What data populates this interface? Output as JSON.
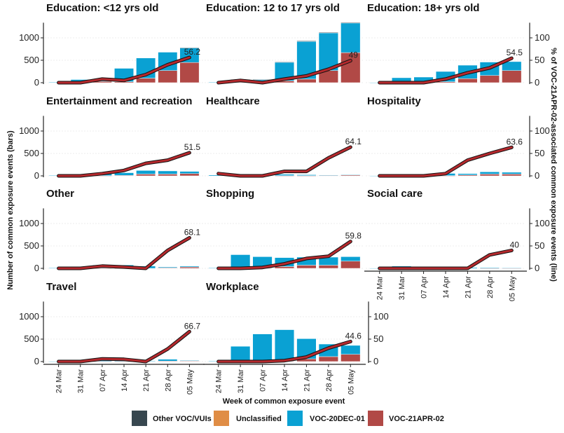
{
  "chart_data": {
    "type": "bar",
    "subtype": "faceted stacked bar with secondary-axis line",
    "xlabel": "Week of common exposure event",
    "ylabel_left": "Number of common exposure events (bars)",
    "ylabel_right": "% of VOC-21APR-02-associated common exposure events (line)",
    "categories": [
      "24 Mar",
      "31 Mar",
      "07 Apr",
      "14 Apr",
      "21 Apr",
      "28 Apr",
      "05 May"
    ],
    "ylim_left": [
      0,
      1400
    ],
    "yticks_left": [
      0,
      500,
      1000
    ],
    "ylim_right": [
      0,
      140
    ],
    "yticks_right": [
      0,
      50,
      100
    ],
    "grid": "horizontal dotted",
    "legend_position": "bottom",
    "legend": [
      {
        "name": "Other VOC/VUIs",
        "color": "#37474f"
      },
      {
        "name": "Unclassified",
        "color": "#e08d45"
      },
      {
        "name": "VOC-20DEC-01",
        "color": "#0aa1d3"
      },
      {
        "name": "VOC-21APR-02",
        "color": "#b14946"
      }
    ],
    "line_color": "#b5292d",
    "panels": [
      {
        "title": "Education: <12 yrs old",
        "series": [
          {
            "name": "Other VOC/VUIs",
            "values": [
              0,
              0,
              0,
              0,
              0,
              0,
              5
            ]
          },
          {
            "name": "Unclassified",
            "values": [
              0,
              0,
              0,
              0,
              0,
              0,
              0
            ]
          },
          {
            "name": "VOC-20DEC-01",
            "values": [
              10,
              60,
              60,
              300,
              450,
              410,
              330
            ]
          },
          {
            "name": "VOC-21APR-02",
            "values": [
              0,
              10,
              30,
              20,
              100,
              270,
              450
            ]
          }
        ],
        "line_pct": [
          0,
          0,
          8,
          5,
          18,
          40,
          56.2
        ],
        "end_label": "56.2"
      },
      {
        "title": "Education: 12 to 17 yrs old",
        "series": [
          {
            "name": "Other VOC/VUIs",
            "values": [
              0,
              5,
              5,
              5,
              15,
              15,
              15
            ]
          },
          {
            "name": "Unclassified",
            "values": [
              0,
              0,
              0,
              0,
              0,
              0,
              0
            ]
          },
          {
            "name": "VOC-20DEC-01",
            "values": [
              10,
              60,
              60,
              420,
              840,
              840,
              660
            ]
          },
          {
            "name": "VOC-21APR-02",
            "values": [
              0,
              10,
              10,
              40,
              80,
              270,
              670
            ]
          }
        ],
        "line_pct": [
          0,
          5,
          0,
          8,
          15,
          30,
          49
        ],
        "end_label": "49"
      },
      {
        "title": "Education: 18+ yrs old",
        "series": [
          {
            "name": "Other VOC/VUIs",
            "values": [
              0,
              0,
              0,
              0,
              0,
              0,
              0
            ]
          },
          {
            "name": "Unclassified",
            "values": [
              0,
              0,
              0,
              0,
              0,
              0,
              0
            ]
          },
          {
            "name": "VOC-20DEC-01",
            "values": [
              5,
              110,
              120,
              230,
              300,
              300,
              200
            ]
          },
          {
            "name": "VOC-21APR-02",
            "values": [
              0,
              0,
              5,
              20,
              90,
              160,
              270
            ]
          }
        ],
        "line_pct": [
          0,
          0,
          0,
          8,
          22,
          33,
          54.5
        ],
        "end_label": "54.5"
      },
      {
        "title": "Entertainment and recreation",
        "series": [
          {
            "name": "Other VOC/VUIs",
            "values": [
              0,
              0,
              0,
              0,
              0,
              0,
              0
            ]
          },
          {
            "name": "Unclassified",
            "values": [
              0,
              0,
              0,
              0,
              0,
              0,
              0
            ]
          },
          {
            "name": "VOC-20DEC-01",
            "values": [
              10,
              20,
              40,
              60,
              80,
              70,
              50
            ]
          },
          {
            "name": "VOC-21APR-02",
            "values": [
              0,
              0,
              5,
              10,
              40,
              40,
              50
            ]
          }
        ],
        "line_pct": [
          0,
          0,
          5,
          12,
          28,
          35,
          51.5
        ],
        "end_label": "51.5"
      },
      {
        "title": "Healthcare",
        "series": [
          {
            "name": "Other VOC/VUIs",
            "values": [
              0,
              0,
              0,
              0,
              0,
              0,
              0
            ]
          },
          {
            "name": "Unclassified",
            "values": [
              0,
              0,
              0,
              0,
              0,
              0,
              0
            ]
          },
          {
            "name": "VOC-20DEC-01",
            "values": [
              20,
              40,
              30,
              30,
              20,
              10,
              10
            ]
          },
          {
            "name": "VOC-21APR-02",
            "values": [
              0,
              0,
              0,
              5,
              5,
              10,
              20
            ]
          }
        ],
        "line_pct": [
          5,
          0,
          0,
          10,
          10,
          40,
          64.1
        ],
        "end_label": "64.1"
      },
      {
        "title": "Hospitality",
        "series": [
          {
            "name": "Other VOC/VUIs",
            "values": [
              0,
              0,
              0,
              0,
              0,
              0,
              0
            ]
          },
          {
            "name": "Unclassified",
            "values": [
              0,
              0,
              0,
              0,
              0,
              0,
              0
            ]
          },
          {
            "name": "VOC-20DEC-01",
            "values": [
              5,
              5,
              10,
              50,
              30,
              50,
              40
            ]
          },
          {
            "name": "VOC-21APR-02",
            "values": [
              0,
              0,
              0,
              5,
              20,
              40,
              40
            ]
          }
        ],
        "line_pct": [
          0,
          0,
          0,
          5,
          35,
          50,
          63.6
        ],
        "end_label": "63.6"
      },
      {
        "title": "Other",
        "series": [
          {
            "name": "Other VOC/VUIs",
            "values": [
              0,
              0,
              0,
              0,
              0,
              0,
              0
            ]
          },
          {
            "name": "Unclassified",
            "values": [
              0,
              0,
              0,
              0,
              0,
              0,
              0
            ]
          },
          {
            "name": "VOC-20DEC-01",
            "values": [
              10,
              40,
              70,
              70,
              50,
              20,
              20
            ]
          },
          {
            "name": "VOC-21APR-02",
            "values": [
              0,
              0,
              5,
              5,
              0,
              10,
              30
            ]
          }
        ],
        "line_pct": [
          0,
          0,
          5,
          3,
          0,
          40,
          68.1
        ],
        "end_label": "68.1"
      },
      {
        "title": "Shopping",
        "series": [
          {
            "name": "Other VOC/VUIs",
            "values": [
              0,
              0,
              0,
              0,
              0,
              0,
              0
            ]
          },
          {
            "name": "Unclassified",
            "values": [
              0,
              0,
              0,
              0,
              0,
              0,
              0
            ]
          },
          {
            "name": "VOC-20DEC-01",
            "values": [
              10,
              300,
              250,
              200,
              180,
              180,
              100
            ]
          },
          {
            "name": "VOC-21APR-02",
            "values": [
              0,
              5,
              10,
              40,
              70,
              70,
              160
            ]
          }
        ],
        "line_pct": [
          0,
          0,
          2,
          10,
          22,
          27,
          59.8
        ],
        "end_label": "59.8"
      },
      {
        "title": "Social care",
        "series": [
          {
            "name": "Other VOC/VUIs",
            "values": [
              0,
              0,
              0,
              0,
              0,
              0,
              0
            ]
          },
          {
            "name": "Unclassified",
            "values": [
              0,
              0,
              0,
              0,
              0,
              0,
              0
            ]
          },
          {
            "name": "VOC-20DEC-01",
            "values": [
              5,
              50,
              30,
              20,
              20,
              15,
              10
            ]
          },
          {
            "name": "VOC-21APR-02",
            "values": [
              0,
              0,
              0,
              0,
              0,
              5,
              5
            ]
          }
        ],
        "line_pct": [
          0,
          0,
          0,
          0,
          0,
          30,
          40
        ],
        "end_label": "40"
      },
      {
        "title": "Travel",
        "series": [
          {
            "name": "Other VOC/VUIs",
            "values": [
              0,
              0,
              0,
              0,
              0,
              0,
              0
            ]
          },
          {
            "name": "Unclassified",
            "values": [
              0,
              0,
              0,
              0,
              0,
              0,
              0
            ]
          },
          {
            "name": "VOC-20DEC-01",
            "values": [
              5,
              10,
              40,
              40,
              10,
              40,
              10
            ]
          },
          {
            "name": "VOC-21APR-02",
            "values": [
              0,
              0,
              5,
              5,
              0,
              10,
              15
            ]
          }
        ],
        "line_pct": [
          0,
          0,
          6,
          5,
          0,
          28,
          66.7
        ],
        "end_label": "66.7"
      },
      {
        "title": "Workplace",
        "series": [
          {
            "name": "Other VOC/VUIs",
            "values": [
              0,
              0,
              0,
              0,
              0,
              0,
              0
            ]
          },
          {
            "name": "Unclassified",
            "values": [
              0,
              0,
              0,
              0,
              0,
              0,
              0
            ]
          },
          {
            "name": "VOC-20DEC-01",
            "values": [
              10,
              340,
              610,
              700,
              450,
              280,
              200
            ]
          },
          {
            "name": "VOC-21APR-02",
            "values": [
              0,
              0,
              5,
              10,
              60,
              110,
              160
            ]
          }
        ],
        "line_pct": [
          0,
          0,
          0,
          2,
          10,
          30,
          44.6
        ],
        "end_label": "44.6"
      }
    ]
  }
}
